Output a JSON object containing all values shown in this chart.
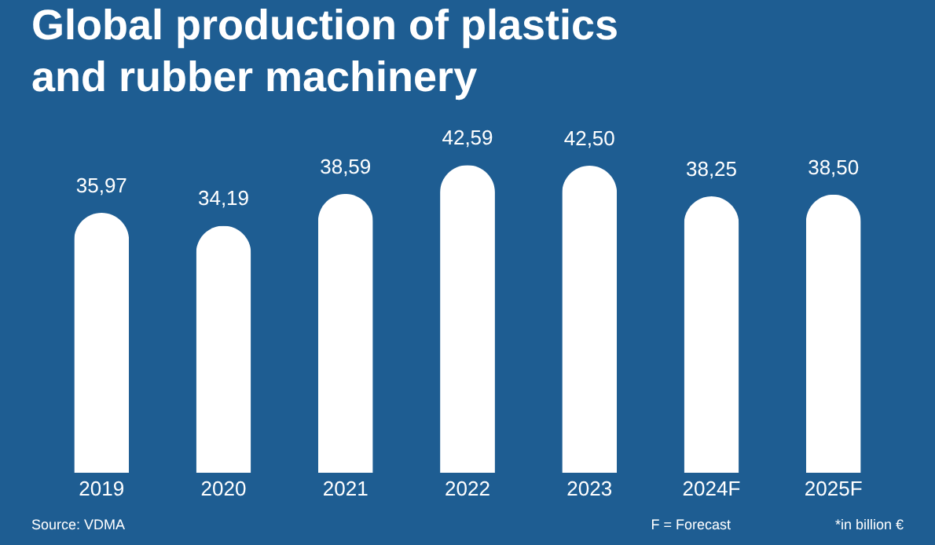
{
  "chart_data": {
    "type": "bar",
    "title": [
      "Global production of plastics",
      "and rubber machinery"
    ],
    "categories": [
      "2019",
      "2020",
      "2021",
      "2022",
      "2023",
      "2024F",
      "2025F"
    ],
    "values": [
      35.97,
      34.19,
      38.59,
      42.59,
      42.5,
      38.25,
      38.5
    ],
    "value_labels": [
      "35,97",
      "34,19",
      "38,59",
      "42,59",
      "42,50",
      "38,25",
      "38,50"
    ],
    "color": "#ffffff",
    "annotations": [
      "Source: VDMA",
      "F = Forecast",
      "*in billion €"
    ],
    "grid": false
  }
}
